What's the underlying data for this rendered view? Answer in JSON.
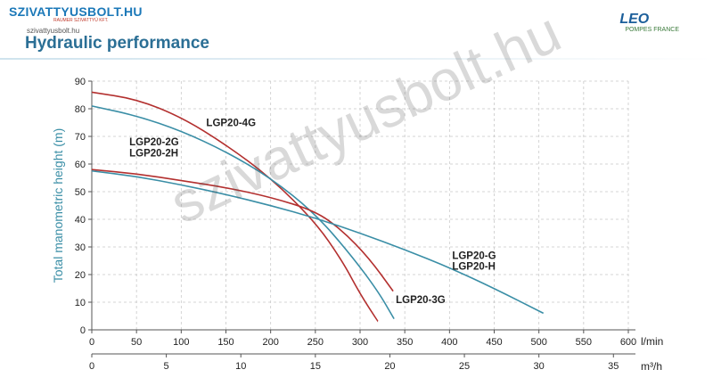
{
  "header": {
    "logo_text": "SZIVATTYUSBOLT.HU",
    "logo_tagline": "RAUMER SZIVATTYÚ KFT.",
    "site_small": "szivattyusbolt.hu",
    "page_title": "Hydraulic performance",
    "brand_name": "LEO",
    "brand_sub": "POMPES FRANCE"
  },
  "watermark": "szivattyusbolt.hu",
  "chart_data": {
    "type": "line",
    "title": "",
    "ylabel": "Total manometric height (m)",
    "xlabel": "l/min",
    "x2label": "m³/h",
    "xlim": [
      0,
      600
    ],
    "ylim": [
      0,
      90
    ],
    "x_ticks": [
      0,
      50,
      100,
      150,
      200,
      250,
      300,
      350,
      400,
      450,
      500,
      550,
      600
    ],
    "y_ticks": [
      0,
      10,
      20,
      30,
      40,
      50,
      60,
      70,
      80,
      90
    ],
    "x2_ticks": [
      0,
      5,
      10,
      15,
      20,
      25,
      30,
      35
    ],
    "grid": true,
    "colors": {
      "blue": "#3a8ea6",
      "red": "#b3302f"
    },
    "series": [
      {
        "name": "LGP20-4G",
        "color": "#b3302f",
        "x": [
          0,
          50,
          100,
          150,
          200,
          250,
          280,
          300,
          320
        ],
        "y": [
          86,
          83.5,
          77,
          67,
          55,
          39,
          25,
          13,
          3
        ]
      },
      {
        "name": "LGP20-2G / LGP20-2H",
        "color": "#3a8ea6",
        "x": [
          0,
          50,
          100,
          150,
          200,
          250,
          290,
          320,
          338
        ],
        "y": [
          81,
          77.5,
          72,
          64.5,
          55,
          42,
          27,
          14,
          4
        ]
      },
      {
        "name": "LGP20-3G",
        "color": "#b3302f",
        "x": [
          0,
          50,
          100,
          150,
          200,
          250,
          280,
          310,
          337
        ],
        "y": [
          58,
          56.5,
          54,
          51.5,
          48,
          43,
          36,
          26,
          14
        ]
      },
      {
        "name": "LGP20-G / LGP20-H",
        "color": "#3a8ea6",
        "x": [
          0,
          50,
          100,
          150,
          200,
          250,
          300,
          350,
          400,
          450,
          505
        ],
        "y": [
          57.5,
          55.5,
          52.5,
          49,
          45,
          40.5,
          35,
          29,
          22.5,
          15,
          6
        ]
      }
    ],
    "labels": [
      {
        "text": "LGP20-4G",
        "x": 128,
        "y": 75
      },
      {
        "text": "LGP20-2G",
        "x": 42,
        "y": 68
      },
      {
        "text": "LGP20-2H",
        "x": 42,
        "y": 64
      },
      {
        "text": "LGP20-G",
        "x": 403,
        "y": 27
      },
      {
        "text": "LGP20-H",
        "x": 403,
        "y": 23
      },
      {
        "text": "LGP20-3G",
        "x": 340,
        "y": 11
      }
    ]
  }
}
